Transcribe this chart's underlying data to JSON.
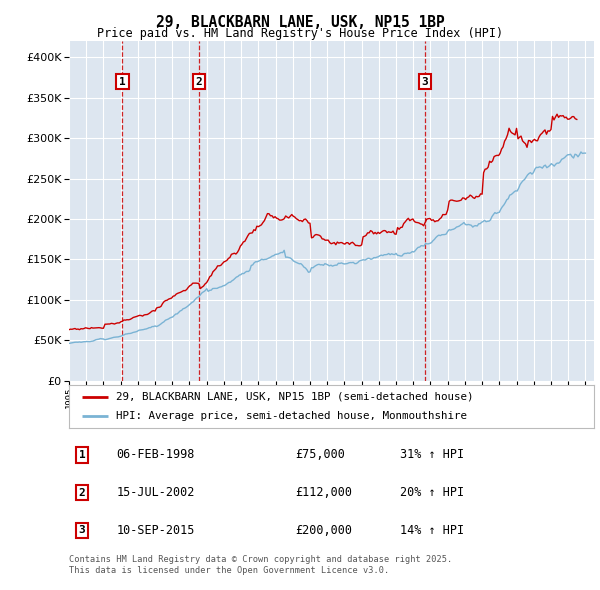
{
  "title": "29, BLACKBARN LANE, USK, NP15 1BP",
  "subtitle": "Price paid vs. HM Land Registry's House Price Index (HPI)",
  "legend_line1": "29, BLACKBARN LANE, USK, NP15 1BP (semi-detached house)",
  "legend_line2": "HPI: Average price, semi-detached house, Monmouthshire",
  "footnote1": "Contains HM Land Registry data © Crown copyright and database right 2025.",
  "footnote2": "This data is licensed under the Open Government Licence v3.0.",
  "transactions": [
    {
      "num": 1,
      "date": "06-FEB-1998",
      "price": "£75,000",
      "hpi": "31% ↑ HPI",
      "x_year": 1998.1,
      "price_val": 75000
    },
    {
      "num": 2,
      "date": "15-JUL-2002",
      "price": "£112,000",
      "hpi": "20% ↑ HPI",
      "x_year": 2002.54,
      "price_val": 112000
    },
    {
      "num": 3,
      "date": "10-SEP-2015",
      "price": "£200,000",
      "hpi": "14% ↑ HPI",
      "x_year": 2015.69,
      "price_val": 200000
    }
  ],
  "ylim": [
    0,
    420000
  ],
  "xlim_start": 1995,
  "xlim_end": 2025.5,
  "bg_color": "#dde6f0",
  "grid_color": "#ffffff",
  "red_line_color": "#cc0000",
  "blue_line_color": "#7ab3d4",
  "vline_color": "#cc0000",
  "box_color": "#cc0000"
}
